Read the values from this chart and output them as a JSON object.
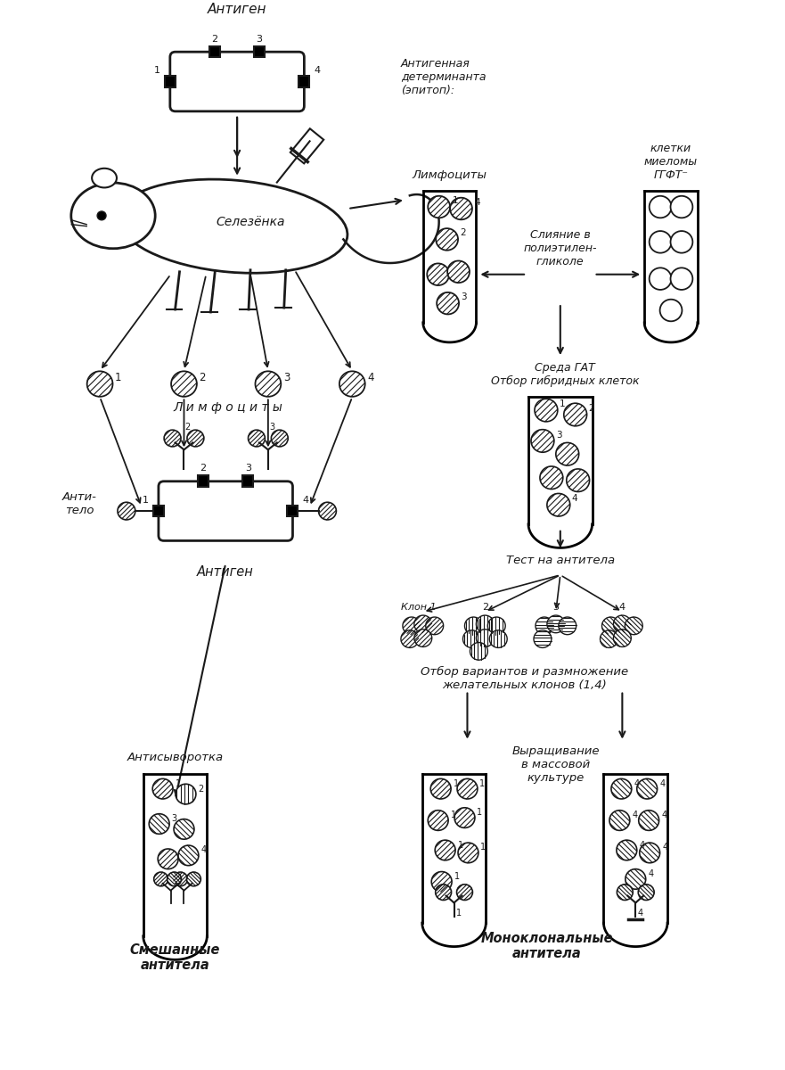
{
  "bg_color": "#ffffff",
  "line_color": "#1a1a1a",
  "text_color": "#1a1a1a",
  "figsize": [
    8.81,
    12.0
  ],
  "dpi": 100,
  "labels": {
    "antigen_top": "Антиген",
    "antigenic_determinant": "Антигенная\nдетерминанта\n(эпитоп):",
    "spleen": "Селезёнка",
    "lymphocytes_tube": "Лимфоциты",
    "myeloma_cells": "клетки\nмиеломы\nГГФТ⁻",
    "fusion": "Слияние в\nполиэтилен-\nгликоле",
    "hat_medium": "Среда ГАТ\nОтбор гибридных клеток",
    "lymphocytes_label": "Л и м ф о ц и т ы",
    "test_antibodies": "Тест на антитела",
    "selection": "Отбор вариантов и размножение\nжелательных клонов (1,4)",
    "mass_culture": "Выращивание\nв массовой\nкультуре",
    "antiserum_label": "Антисыворотка",
    "mixed_antibodies": "Смешанные\nантитела",
    "monoclonal": "Моноклональные\nантитела",
    "antibody": "Анти-\nтело",
    "antigen_bottom": "Антиген"
  }
}
